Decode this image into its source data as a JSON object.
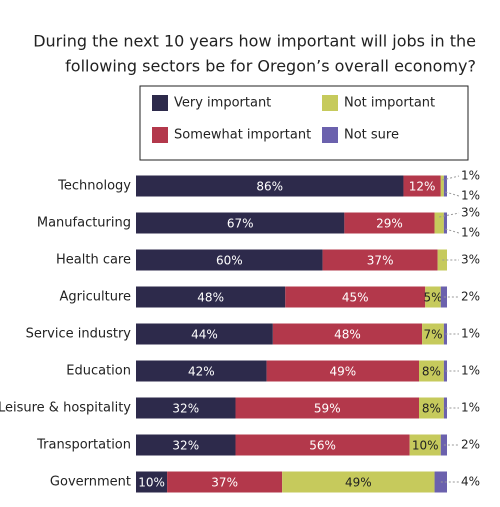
{
  "chart_data": {
    "type": "stacked-bar-horizontal",
    "title": [
      "During the next 10 years how important will jobs in the",
      "following sectors be for Oregon’s overall economy?"
    ],
    "categories": [
      "Technology",
      "Manufacturing",
      "Health care",
      "Agriculture",
      "Service industry",
      "Education",
      "Leisure & hospitality",
      "Transportation",
      "Government"
    ],
    "xlim": [
      0,
      100
    ],
    "series": [
      {
        "name": "Very important",
        "color": "#2d2a4b",
        "values": [
          86,
          67,
          60,
          48,
          44,
          42,
          32,
          32,
          10
        ],
        "value_labels": [
          "86%",
          "67%",
          "60%",
          "48%",
          "44%",
          "42%",
          "32%",
          "32%",
          "10%"
        ]
      },
      {
        "name": "Somewhat important",
        "color": "#b3384b",
        "values": [
          12,
          29,
          37,
          45,
          48,
          49,
          59,
          56,
          37
        ],
        "value_labels": [
          "12%",
          "29%",
          "37%",
          "45%",
          "48%",
          "49%",
          "59%",
          "56%",
          "37%"
        ]
      },
      {
        "name": "Not important",
        "color": "#c6ca5c",
        "values": [
          1,
          3,
          3,
          5,
          7,
          8,
          8,
          10,
          49
        ],
        "value_labels": [
          "1%",
          "3%",
          "3%",
          "5%",
          "7%",
          "8%",
          "8%",
          "10%",
          "49%"
        ]
      },
      {
        "name": "Not sure",
        "color": "#6b61ad",
        "values": [
          1,
          1,
          0,
          2,
          1,
          1,
          1,
          2,
          4
        ],
        "value_labels": [
          "1%",
          "1%",
          null,
          "2%",
          "1%",
          "1%",
          "1%",
          "2%",
          "4%"
        ]
      }
    ]
  }
}
